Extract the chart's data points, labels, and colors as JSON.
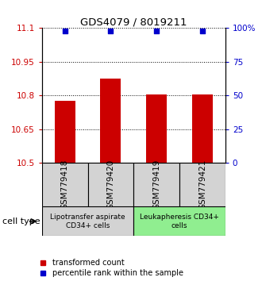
{
  "title": "GDS4079 / 8019211",
  "samples": [
    "GSM779418",
    "GSM779420",
    "GSM779419",
    "GSM779421"
  ],
  "bar_values": [
    10.775,
    10.875,
    10.805,
    10.805
  ],
  "percentile_values": [
    98,
    98,
    98,
    98
  ],
  "ylim_left": [
    10.5,
    11.1
  ],
  "ylim_right": [
    0,
    100
  ],
  "yticks_left": [
    10.5,
    10.65,
    10.8,
    10.95,
    11.1
  ],
  "yticks_right": [
    0,
    25,
    50,
    75,
    100
  ],
  "ytick_labels_left": [
    "10.5",
    "10.65",
    "10.8",
    "10.95",
    "11.1"
  ],
  "ytick_labels_right": [
    "0",
    "25",
    "50",
    "75",
    "100%"
  ],
  "bar_color": "#cc0000",
  "dot_color": "#0000cc",
  "bar_width": 0.45,
  "cell_type_groups": [
    {
      "label": "Lipotransfer aspirate\nCD34+ cells",
      "samples": [
        0,
        1
      ],
      "color": "#d3d3d3"
    },
    {
      "label": "Leukapheresis CD34+\ncells",
      "samples": [
        2,
        3
      ],
      "color": "#90ee90"
    }
  ],
  "cell_type_label": "cell type",
  "legend_red_label": "transformed count",
  "legend_blue_label": "percentile rank within the sample",
  "background_color": "#ffffff",
  "sample_box_color": "#d3d3d3",
  "title_fontsize": 9.5,
  "tick_fontsize": 7.5,
  "sample_fontsize": 7.5,
  "legend_fontsize": 7,
  "cell_label_fontsize": 6.5,
  "cell_type_fontsize": 8
}
